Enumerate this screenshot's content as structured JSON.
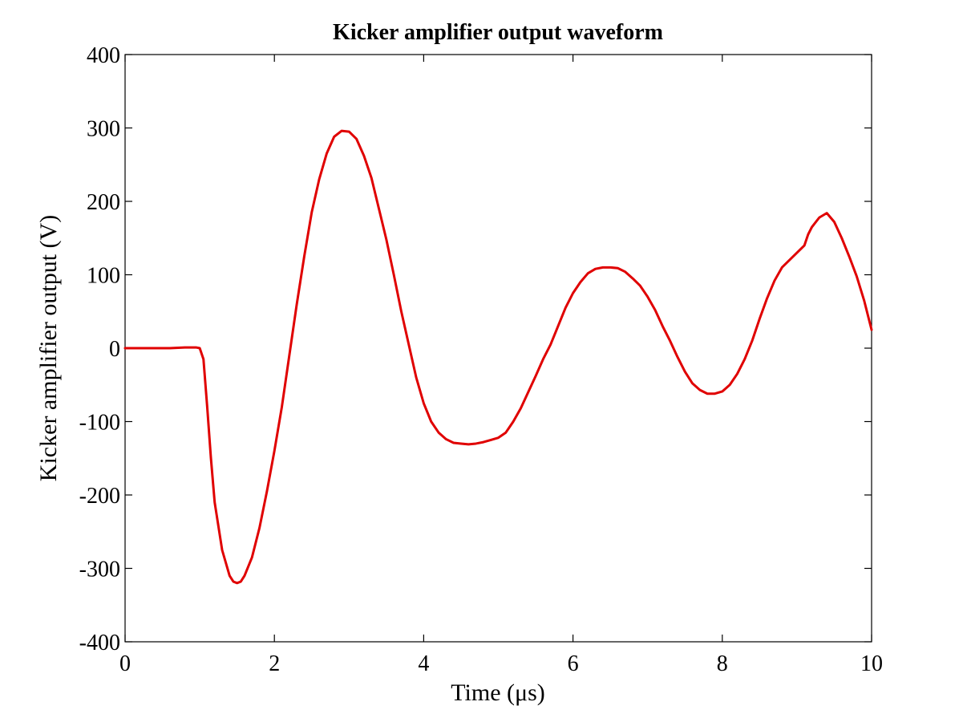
{
  "chart_data": {
    "type": "line",
    "title": "Kicker amplifier output waveform",
    "xlabel": "Time (μs)",
    "ylabel": "Kicker amplifier output (V)",
    "xlim": [
      0,
      10
    ],
    "ylim": [
      -400,
      400
    ],
    "xticks": [
      0,
      2,
      4,
      6,
      8,
      10
    ],
    "yticks": [
      -400,
      -300,
      -200,
      -100,
      0,
      100,
      200,
      300,
      400
    ],
    "xtick_labels": [
      "0",
      "2",
      "4",
      "6",
      "8",
      "10"
    ],
    "ytick_labels": [
      "-400",
      "-300",
      "-200",
      "-100",
      "0",
      "100",
      "200",
      "300",
      "400"
    ],
    "grid": false,
    "series": [
      {
        "color": "#e00000",
        "x": [
          0.0,
          0.2,
          0.4,
          0.6,
          0.8,
          0.95,
          1.0,
          1.05,
          1.1,
          1.15,
          1.2,
          1.3,
          1.4,
          1.45,
          1.5,
          1.55,
          1.6,
          1.7,
          1.8,
          1.9,
          2.0,
          2.1,
          2.2,
          2.3,
          2.4,
          2.5,
          2.6,
          2.7,
          2.8,
          2.9,
          3.0,
          3.1,
          3.2,
          3.3,
          3.4,
          3.5,
          3.6,
          3.7,
          3.8,
          3.9,
          4.0,
          4.1,
          4.2,
          4.3,
          4.4,
          4.5,
          4.6,
          4.7,
          4.8,
          4.9,
          5.0,
          5.1,
          5.2,
          5.3,
          5.4,
          5.5,
          5.6,
          5.7,
          5.8,
          5.9,
          6.0,
          6.1,
          6.2,
          6.3,
          6.4,
          6.5,
          6.6,
          6.7,
          6.8,
          6.9,
          7.0,
          7.1,
          7.2,
          7.3,
          7.4,
          7.5,
          7.6,
          7.7,
          7.8,
          7.9,
          8.0,
          8.1,
          8.2,
          8.3,
          8.4,
          8.5,
          8.6,
          8.7,
          8.8,
          8.9,
          9.0,
          9.1,
          9.15,
          9.2,
          9.3,
          9.4,
          9.5,
          9.6,
          9.7,
          9.8,
          9.9,
          10.0
        ],
        "y": [
          0,
          0,
          0,
          0,
          1,
          1,
          0,
          -15,
          -80,
          -150,
          -210,
          -275,
          -310,
          -318,
          -320,
          -318,
          -310,
          -285,
          -245,
          -195,
          -140,
          -80,
          -10,
          60,
          125,
          185,
          230,
          265,
          288,
          296,
          295,
          285,
          262,
          232,
          190,
          148,
          100,
          50,
          5,
          -40,
          -75,
          -100,
          -115,
          -124,
          -129,
          -130,
          -131,
          -130,
          -128,
          -125,
          -122,
          -115,
          -100,
          -82,
          -60,
          -38,
          -15,
          5,
          30,
          55,
          75,
          90,
          102,
          108,
          110,
          110,
          109,
          104,
          95,
          85,
          70,
          52,
          30,
          10,
          -12,
          -32,
          -48,
          -57,
          -62,
          -62,
          -59,
          -50,
          -35,
          -15,
          10,
          40,
          68,
          92,
          110,
          120,
          130,
          140,
          155,
          165,
          178,
          184,
          172,
          150,
          125,
          98,
          65,
          25
        ]
      }
    ]
  }
}
